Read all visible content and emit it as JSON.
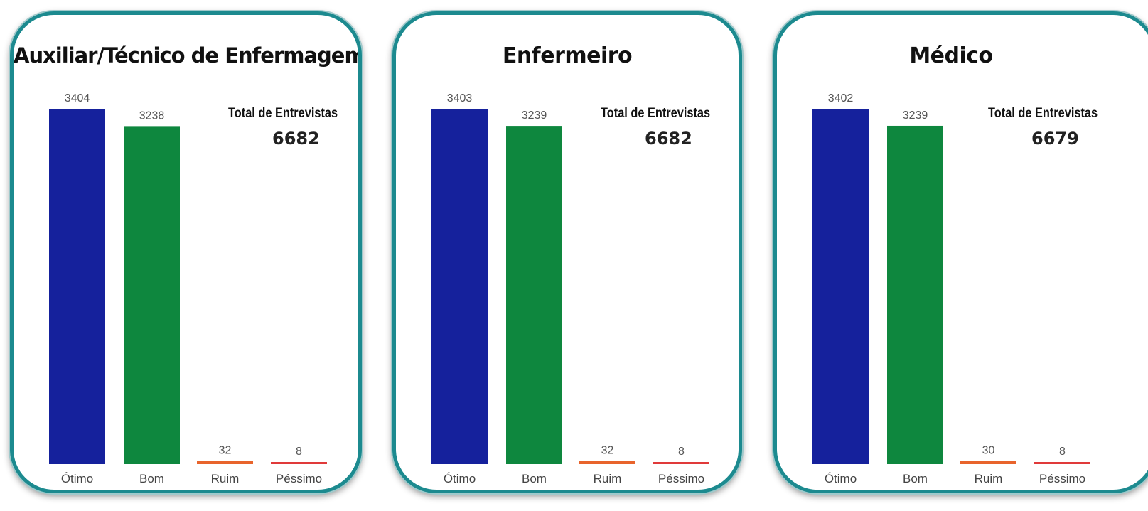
{
  "kpi_label": "Total de Entrevistas",
  "colors": {
    "Ótimo": "#15219c",
    "Bom": "#0e873e",
    "Ruim": "#e8642c",
    "Péssimo": "#e03a3a",
    "panel_border": "#1c8a8f"
  },
  "chart_data": [
    {
      "type": "bar",
      "title": "Auxiliar/Técnico de Enfermagem",
      "categories": [
        "Ótimo",
        "Bom",
        "Ruim",
        "Péssimo"
      ],
      "values": [
        3404,
        3238,
        32,
        8
      ],
      "data_labels": [
        "3404",
        "3238",
        "32",
        "8"
      ],
      "ylim": [
        0,
        3404
      ],
      "grid": false,
      "legend": "none",
      "total_label": "Total de Entrevistas",
      "total": "6682"
    },
    {
      "type": "bar",
      "title": "Enfermeiro",
      "categories": [
        "Ótimo",
        "Bom",
        "Ruim",
        "Péssimo"
      ],
      "values": [
        3403,
        3239,
        32,
        8
      ],
      "data_labels": [
        "3403",
        "3239",
        "32",
        "8"
      ],
      "ylim": [
        0,
        3403
      ],
      "grid": false,
      "legend": "none",
      "total_label": "Total de Entrevistas",
      "total": "6682"
    },
    {
      "type": "bar",
      "title": "Médico",
      "categories": [
        "Ótimo",
        "Bom",
        "Ruim",
        "Péssimo"
      ],
      "values": [
        3402,
        3239,
        30,
        8
      ],
      "data_labels": [
        "3402",
        "3239",
        "30",
        "8"
      ],
      "ylim": [
        0,
        3402
      ],
      "grid": false,
      "legend": "none",
      "total_label": "Total de Entrevistas",
      "total": "6679"
    }
  ]
}
